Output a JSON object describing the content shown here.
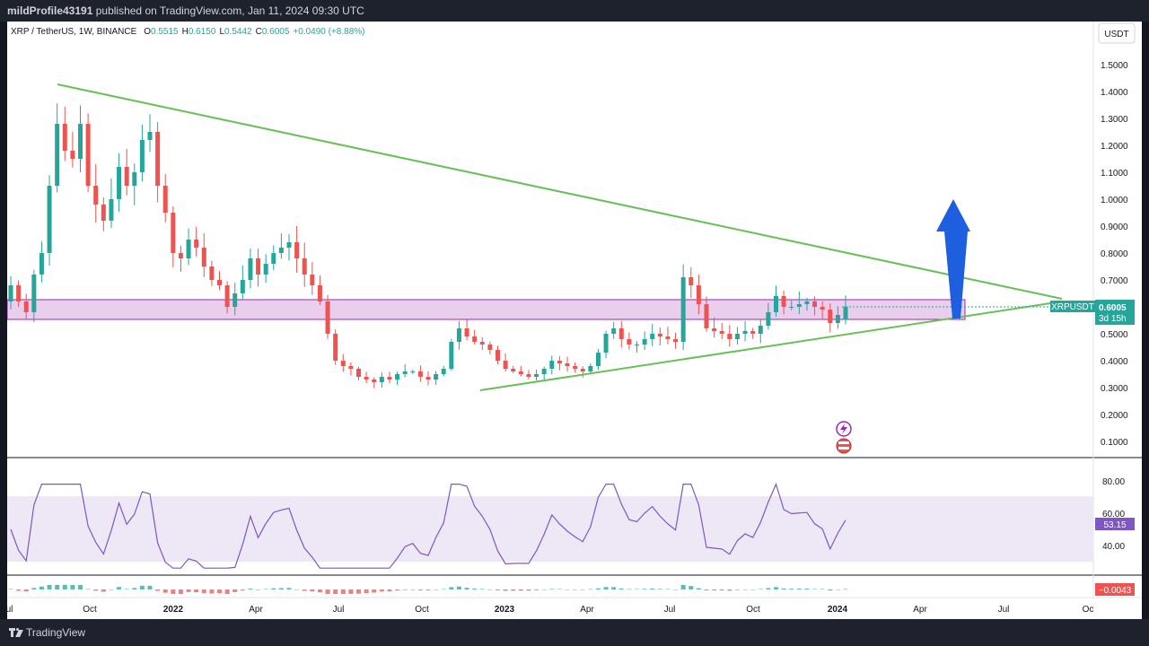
{
  "header": {
    "publisher": "mildProfile43191",
    "published_text": "published on TradingView.com, Jan 11, 2024 09:30 UTC"
  },
  "legend": {
    "symbol": "XRP / TetherUS, 1W, BINANCE",
    "o_label": "O",
    "o_value": "0.5515",
    "h_label": "H",
    "h_value": "0.6150",
    "l_label": "L",
    "l_value": "0.5442",
    "c_label": "C",
    "c_value": "0.6005",
    "change": "+0.0490 (+8.88%)"
  },
  "currency_button": "USDT",
  "price_badge": {
    "ticker": "XRPUSDT",
    "price": "0.6005",
    "countdown": "3d 15h"
  },
  "rsi_badge": "53.15",
  "macd_badge": "−0.0043",
  "footer_logo": "TradingView",
  "colors": {
    "up": "#26a69a",
    "down": "#ef5350",
    "trendline": "#6abf59",
    "zone_fill": "#e1bee7",
    "zone_border": "#9c27b0",
    "rsi_line": "#7e57c2",
    "rsi_band": "#ede7f6",
    "arrow": "#1e5fe0",
    "badge_ticker": "#26a69a",
    "badge_rsi": "#7e57c2",
    "badge_macd": "#ef5350"
  },
  "chart_data": {
    "type": "candlestick",
    "price_axis": {
      "ticks": [
        "1.5000",
        "1.4000",
        "1.3000",
        "1.2000",
        "1.1000",
        "1.0000",
        "0.9000",
        "0.8000",
        "0.7000",
        "0.6000",
        "0.5000",
        "0.4000",
        "0.3000",
        "0.2000",
        "0.1000"
      ],
      "range": [
        0.05,
        1.55
      ]
    },
    "rsi_axis": {
      "ticks": [
        "80.00",
        "60.00",
        "40.00"
      ],
      "range": [
        20,
        85
      ],
      "band": [
        30,
        70
      ]
    },
    "time_axis": [
      "Jul",
      "Oct",
      "2022",
      "Apr",
      "Jul",
      "Oct",
      "2023",
      "Apr",
      "Jul",
      "Oct",
      "2024",
      "Apr",
      "Jul",
      "Oc"
    ],
    "time_axis_bold": [
      "2022",
      "2023",
      "2024"
    ],
    "closes": [
      0.68,
      0.62,
      0.58,
      0.72,
      0.8,
      1.05,
      1.28,
      1.18,
      1.15,
      1.28,
      1.05,
      0.98,
      0.92,
      1.0,
      1.12,
      1.05,
      1.1,
      1.22,
      1.25,
      1.05,
      0.95,
      0.8,
      0.78,
      0.85,
      0.82,
      0.75,
      0.7,
      0.68,
      0.6,
      0.65,
      0.7,
      0.78,
      0.72,
      0.76,
      0.8,
      0.82,
      0.84,
      0.78,
      0.72,
      0.68,
      0.62,
      0.5,
      0.4,
      0.38,
      0.37,
      0.34,
      0.33,
      0.32,
      0.34,
      0.33,
      0.35,
      0.36,
      0.36,
      0.34,
      0.33,
      0.35,
      0.37,
      0.47,
      0.52,
      0.49,
      0.47,
      0.46,
      0.44,
      0.4,
      0.37,
      0.36,
      0.35,
      0.34,
      0.35,
      0.37,
      0.4,
      0.39,
      0.38,
      0.37,
      0.36,
      0.38,
      0.43,
      0.5,
      0.52,
      0.48,
      0.46,
      0.46,
      0.48,
      0.5,
      0.49,
      0.48,
      0.47,
      0.71,
      0.68,
      0.61,
      0.52,
      0.51,
      0.5,
      0.48,
      0.5,
      0.51,
      0.5,
      0.53,
      0.58,
      0.64,
      0.6,
      0.6,
      0.61,
      0.62,
      0.6,
      0.59,
      0.54,
      0.57,
      0.6005
    ],
    "rsi_line_points_count": 109
  }
}
